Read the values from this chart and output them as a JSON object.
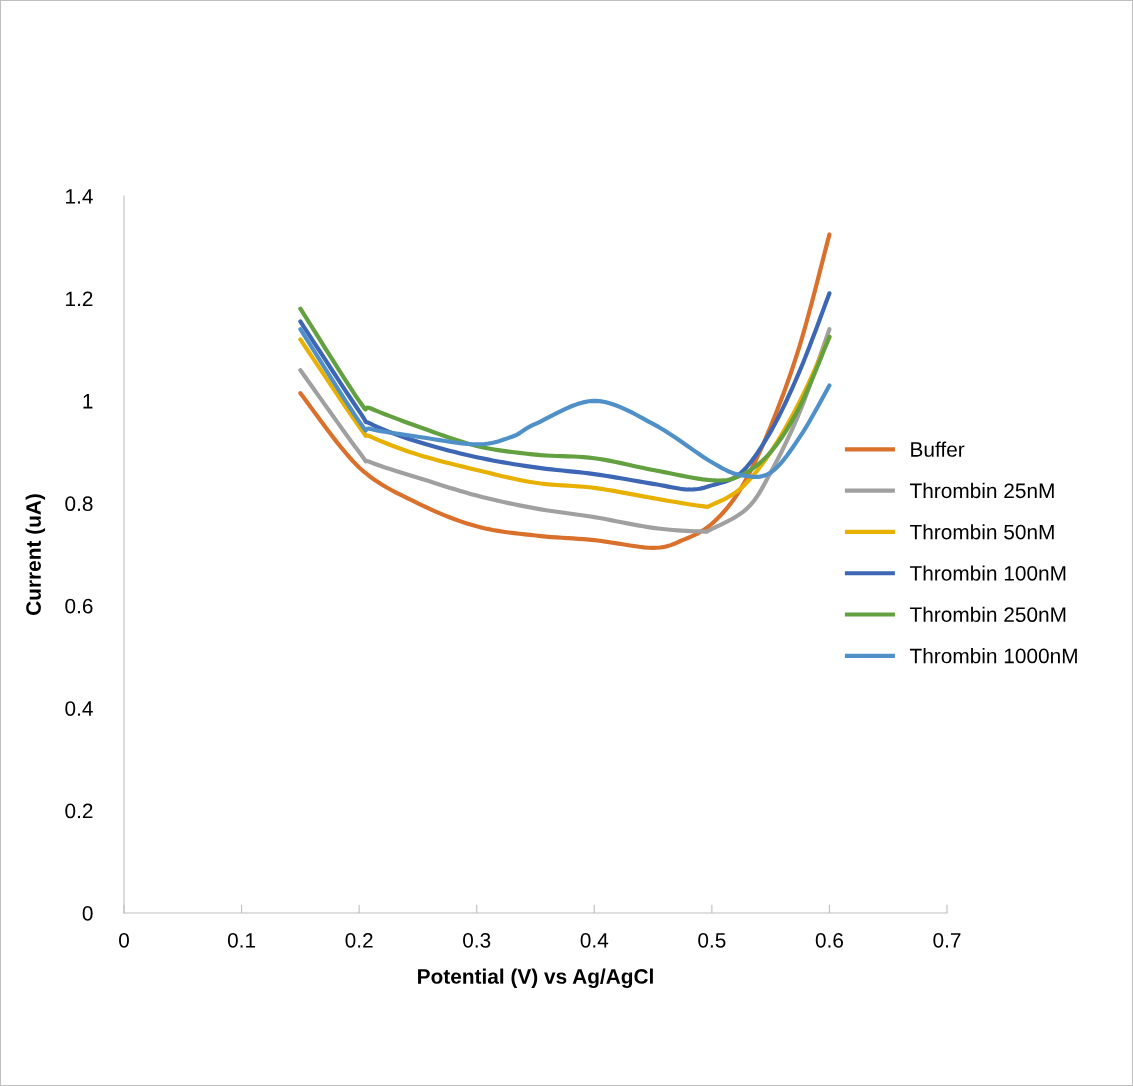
{
  "chart_data": {
    "type": "line",
    "xlabel": "Potential (V) vs Ag/AgCl",
    "ylabel": "Current (uA)",
    "xlim": [
      0,
      0.7
    ],
    "xticks": [
      0,
      0.1,
      0.2,
      0.3,
      0.4,
      0.5,
      0.6,
      0.7
    ],
    "ylim": [
      0,
      1.4
    ],
    "yticks": [
      0,
      0.2,
      0.4,
      0.6,
      0.8,
      1,
      1.2,
      1.4
    ],
    "grid": false,
    "legend": "right",
    "marker": "none",
    "line_style": "solid",
    "series": [
      {
        "name": "Buffer",
        "color": "#d9702c",
        "x": [
          0.15,
          0.2,
          0.25,
          0.3,
          0.35,
          0.4,
          0.45,
          0.475,
          0.5,
          0.525,
          0.55,
          0.575,
          0.6
        ],
        "values": [
          1.015,
          0.87,
          0.8,
          0.755,
          0.737,
          0.728,
          0.713,
          0.728,
          0.76,
          0.83,
          0.95,
          1.11,
          1.325
        ]
      },
      {
        "name": "Thrombin 25nM",
        "color": "#a0a0a0",
        "x": [
          0.15,
          0.2,
          0.21,
          0.25,
          0.3,
          0.35,
          0.4,
          0.45,
          0.49,
          0.5,
          0.53,
          0.55,
          0.575,
          0.6
        ],
        "values": [
          1.06,
          0.9,
          0.88,
          0.85,
          0.815,
          0.79,
          0.773,
          0.752,
          0.745,
          0.75,
          0.79,
          0.86,
          0.98,
          1.14
        ]
      },
      {
        "name": "Thrombin 50nM",
        "color": "#e8b000",
        "x": [
          0.15,
          0.2,
          0.21,
          0.25,
          0.3,
          0.35,
          0.4,
          0.45,
          0.49,
          0.5,
          0.525,
          0.55,
          0.575,
          0.6
        ],
        "values": [
          1.12,
          0.95,
          0.93,
          0.895,
          0.865,
          0.84,
          0.83,
          0.81,
          0.795,
          0.797,
          0.83,
          0.9,
          1.0,
          1.125
        ]
      },
      {
        "name": "Thrombin 100nM",
        "color": "#3d66b4",
        "x": [
          0.15,
          0.2,
          0.21,
          0.25,
          0.3,
          0.35,
          0.4,
          0.45,
          0.48,
          0.5,
          0.525,
          0.55,
          0.575,
          0.6
        ],
        "values": [
          1.155,
          0.98,
          0.955,
          0.92,
          0.89,
          0.87,
          0.857,
          0.838,
          0.827,
          0.835,
          0.86,
          0.94,
          1.06,
          1.21
        ]
      },
      {
        "name": "Thrombin 250nM",
        "color": "#62a040",
        "x": [
          0.15,
          0.2,
          0.21,
          0.25,
          0.3,
          0.35,
          0.4,
          0.45,
          0.5,
          0.525,
          0.55,
          0.575,
          0.6
        ],
        "values": [
          1.18,
          1.0,
          0.985,
          0.95,
          0.912,
          0.895,
          0.888,
          0.865,
          0.845,
          0.855,
          0.9,
          0.99,
          1.125
        ]
      },
      {
        "name": "Thrombin 1000nM",
        "color": "#4f90c8",
        "x": [
          0.15,
          0.2,
          0.21,
          0.25,
          0.3,
          0.33,
          0.35,
          0.4,
          0.45,
          0.5,
          0.525,
          0.55,
          0.575,
          0.6
        ],
        "values": [
          1.14,
          0.96,
          0.945,
          0.93,
          0.915,
          0.93,
          0.955,
          1.0,
          0.955,
          0.88,
          0.855,
          0.86,
          0.93,
          1.03
        ]
      }
    ]
  }
}
